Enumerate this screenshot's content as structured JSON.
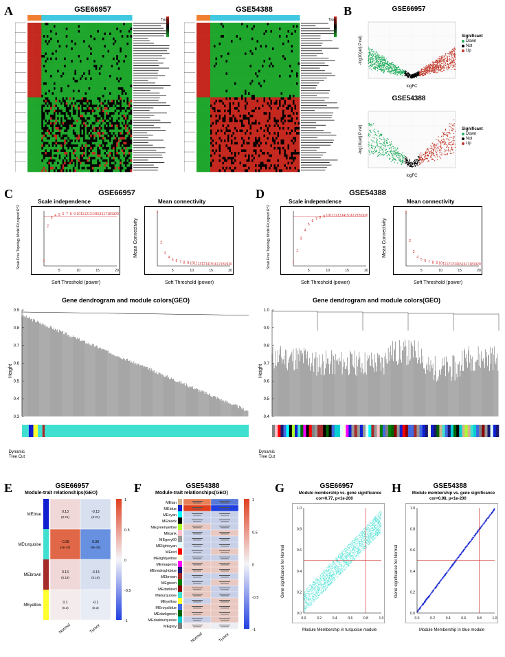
{
  "datasets": {
    "a": "GSE66957",
    "b": "GSE54388"
  },
  "labels": {
    "A": "A",
    "B": "B",
    "C": "C",
    "D": "D",
    "E": "E",
    "F": "F",
    "G": "G",
    "H": "H"
  },
  "colors": {
    "heatmap_high": "#c4281f",
    "heatmap_mid": "#000000",
    "heatmap_low": "#1fa62c",
    "volcano_up": "#c0392b",
    "volcano_down": "#27ae60",
    "volcano_ns": "#000000",
    "type_a": "#40c8e0",
    "type_b": "#f08030",
    "turquoise": "#40e0d0",
    "blue": "#1020d0",
    "brown": "#a52a2a",
    "yellow": "#ffff30",
    "grey": "#808080",
    "black": "#000",
    "tan": "#d2b48c",
    "cyan": "#00ffff",
    "pink": "#ffc0cb",
    "greenyellow": "#adff2f",
    "grey60": "#999",
    "lightcyan": "#e0ffff",
    "red": "#ff0000",
    "lightyellow": "#ffffe0",
    "magenta": "#ff00ff",
    "midnightblue": "#191970",
    "green": "#008000",
    "darkred": "#8b0000",
    "royalblue": "#4169e1",
    "darkgreen": "#006400",
    "darkturquoise": "#00ced1",
    "plot_red": "#d02020",
    "corr_high": "#e04020",
    "corr_low": "#2040e0",
    "corr_mid": "#f4f4f8"
  },
  "panelC": {
    "title_si": "Scale independence",
    "title_mc": "Mean connectivity",
    "xlab": "Soft Threshold (power)",
    "ylab_si": "Scale Free Topology Model Fit,signed R^2",
    "ylab_mc": "Mean Connectivity",
    "si_points": [
      [
        1,
        -0.2
      ],
      [
        2,
        0.62
      ],
      [
        3,
        0.82
      ],
      [
        4,
        0.87
      ],
      [
        5,
        0.89
      ],
      [
        6,
        0.9
      ],
      [
        7,
        0.9
      ],
      [
        8,
        0.9
      ],
      [
        9,
        0.9
      ],
      [
        10,
        0.9
      ],
      [
        11,
        0.9
      ],
      [
        12,
        0.9
      ],
      [
        13,
        0.9
      ],
      [
        14,
        0.9
      ],
      [
        15,
        0.9
      ],
      [
        16,
        0.9
      ],
      [
        17,
        0.9
      ],
      [
        18,
        0.9
      ],
      [
        19,
        0.9
      ],
      [
        20,
        0.9
      ]
    ],
    "si_ylim": [
      -0.3,
      1.0
    ],
    "si_yticks": [
      "-0.2",
      "0.2",
      "0.6",
      "1.0"
    ],
    "mc_points": [
      [
        1,
        5000
      ],
      [
        2,
        2100
      ],
      [
        3,
        1100
      ],
      [
        4,
        700
      ],
      [
        5,
        500
      ],
      [
        6,
        380
      ],
      [
        7,
        300
      ],
      [
        8,
        240
      ],
      [
        9,
        200
      ],
      [
        10,
        170
      ],
      [
        11,
        150
      ],
      [
        12,
        130
      ],
      [
        13,
        115
      ],
      [
        14,
        100
      ],
      [
        15,
        90
      ],
      [
        16,
        80
      ],
      [
        17,
        72
      ],
      [
        18,
        65
      ],
      [
        19,
        58
      ],
      [
        20,
        52
      ]
    ],
    "mc_ylim": [
      0,
      5200
    ],
    "dendro_title": "Gene dendrogram and module colors(GEO)",
    "height_label": "Height",
    "dtc_label": "Dynamic Tree Cut",
    "height_ticks": [
      "0.3",
      "0.4",
      "0.5",
      "0.6",
      "0.7",
      "0.8",
      "0.9"
    ]
  },
  "panelD": {
    "si_points": [
      [
        1,
        0.05
      ],
      [
        2,
        0.25
      ],
      [
        3,
        0.48
      ],
      [
        4,
        0.63
      ],
      [
        5,
        0.74
      ],
      [
        6,
        0.8
      ],
      [
        7,
        0.84
      ],
      [
        8,
        0.86
      ],
      [
        9,
        0.88
      ],
      [
        10,
        0.9
      ],
      [
        11,
        0.9
      ],
      [
        12,
        0.9
      ],
      [
        13,
        0.9
      ],
      [
        14,
        0.9
      ],
      [
        15,
        0.9
      ],
      [
        16,
        0.9
      ],
      [
        17,
        0.9
      ],
      [
        18,
        0.9
      ],
      [
        19,
        0.9
      ],
      [
        20,
        0.9
      ]
    ],
    "si_ylim": [
      0,
      1.0
    ],
    "si_yticks": [
      "0.2",
      "0.4",
      "0.6",
      "0.8"
    ],
    "mc_points": [
      [
        1,
        2100
      ],
      [
        2,
        960
      ],
      [
        3,
        520
      ],
      [
        4,
        320
      ],
      [
        5,
        220
      ],
      [
        6,
        160
      ],
      [
        7,
        120
      ],
      [
        8,
        95
      ],
      [
        9,
        78
      ],
      [
        10,
        65
      ],
      [
        11,
        55
      ],
      [
        12,
        48
      ],
      [
        13,
        42
      ],
      [
        14,
        38
      ],
      [
        15,
        34
      ],
      [
        16,
        31
      ],
      [
        17,
        28
      ],
      [
        18,
        26
      ],
      [
        19,
        24
      ],
      [
        20,
        22
      ]
    ],
    "mc_ylim": [
      0,
      2200
    ],
    "mc_yticks": [
      "0",
      "500",
      "1000",
      "1500",
      "2000"
    ],
    "height_ticks": [
      "0.4",
      "0.5",
      "0.6",
      "0.7",
      "0.8",
      "0.9",
      "1.0"
    ]
  },
  "panelE": {
    "title": "Module-trait relationships(GEO)",
    "modules": [
      "MEblue",
      "MEturquoise",
      "MEbrown",
      "MEyellow"
    ],
    "colors": [
      "#1020d0",
      "#40e0d0",
      "#a52a2a",
      "#ffff30"
    ],
    "traits": [
      "Normal",
      "Tumor"
    ],
    "cells": [
      [
        {
          "v": "0.13",
          "p": "0.21",
          "c": "#f0d8d8"
        },
        {
          "v": "-0.13",
          "p": "0.21",
          "c": "#d8e0f0"
        }
      ],
      [
        {
          "v": "-0.39",
          "p": "4e-14",
          "c": "#e06848"
        },
        {
          "v": "0.39",
          "p": "4e-14",
          "c": "#6890e0"
        }
      ],
      [
        {
          "v": "0.13",
          "p": "0.19",
          "c": "#f0d8d8"
        },
        {
          "v": "-0.13",
          "p": "0.19",
          "c": "#d8e0f0"
        }
      ],
      [
        {
          "v": "0.1",
          "p": "0.3",
          "c": "#f4ecec"
        },
        {
          "v": "-0.1",
          "p": "0.3",
          "c": "#e8ecf4"
        }
      ]
    ],
    "scale": [
      "1",
      "0.5",
      "0",
      "-0.5",
      "-1"
    ]
  },
  "panelF": {
    "title": "Module-trait relationships(GEO)",
    "modules": [
      "MEtan",
      "MEblue",
      "MEcyan",
      "MEblack",
      "MEgreenyellow",
      "MEpink",
      "MEgrey60",
      "MElightcyan",
      "MEred",
      "MElightyellow",
      "MEmagenta",
      "MEmidnightblue",
      "MEbrown",
      "MEgreen",
      "MEdarkred",
      "MEturquoise",
      "MEyellow",
      "MEroyalblue",
      "MEdarkgreen",
      "MEdarkturquoise",
      "MEgrey"
    ],
    "colors": [
      "#d2b48c",
      "#1020d0",
      "#00ffff",
      "#000",
      "#adff2f",
      "#ffc0cb",
      "#999",
      "#e0ffff",
      "#ff0000",
      "#ffffe0",
      "#ff00ff",
      "#191970",
      "#a52a2a",
      "#008000",
      "#8b0000",
      "#40e0d0",
      "#ffff30",
      "#4169e1",
      "#006400",
      "#00ced1",
      "#808080"
    ],
    "traits": [
      "Normal",
      "Tumor"
    ],
    "blue_row_color_l": "#e04020",
    "blue_row_color_r": "#2040e0"
  },
  "panelG": {
    "title": "Module membership vs. gene significance",
    "sub": "cor=0.77, p<1e-200",
    "xlab": "Module Membership in turquoise module",
    "ylab": "Gene significance for Normal",
    "color": "#40e0d0"
  },
  "panelH": {
    "title": "Module membership vs. gene significance",
    "sub": "cor=0.98, p<1e-200",
    "xlab": "Module Membership in blue module",
    "ylab": "Gene significance for Normal",
    "color": "#1020d0"
  },
  "volcano": {
    "xlab": "logFC",
    "ylab": "-log10(adj.P.val)",
    "legend_title": "Significant",
    "legend": [
      "Down",
      "Not",
      "Up"
    ]
  },
  "type_label": "Type"
}
